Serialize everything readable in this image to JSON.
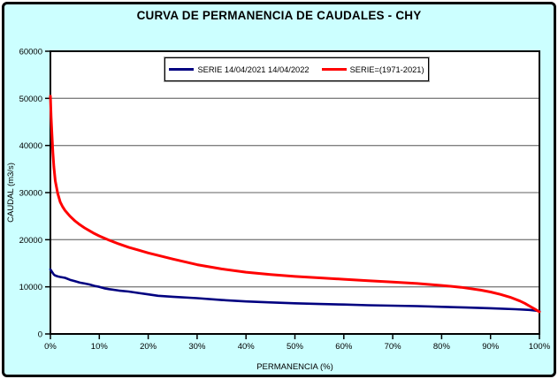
{
  "colors": {
    "background": "#CCFFFF",
    "plot_background": "#FFFFFF",
    "gridline": "#808080",
    "axis": "#000000",
    "series_blue": "#000080",
    "series_red": "#FF0000"
  },
  "chart_data": {
    "type": "line",
    "title": "CURVA DE PERMANENCIA DE CAUDALES - CHY",
    "xlabel": "PERMANENCIA (%)",
    "ylabel": "CAUDAL (m3/s)",
    "xlim": [
      0,
      100
    ],
    "ylim": [
      0,
      60000
    ],
    "x_tick_labels": [
      "0%",
      "10%",
      "20%",
      "30%",
      "40%",
      "50%",
      "60%",
      "70%",
      "80%",
      "90%",
      "100%"
    ],
    "y_tick_labels": [
      "0",
      "10000",
      "20000",
      "30000",
      "40000",
      "50000",
      "60000"
    ],
    "grid": "horizontal-only",
    "legend_position": "top-center-inside",
    "series": [
      {
        "id": "serie-2021-2022",
        "name": "SERIE 14/04/2021 14/04/2022",
        "color": "#000080",
        "stroke_width": 2.6,
        "x": [
          0,
          0.3,
          0.7,
          1,
          1.5,
          2,
          3,
          4,
          5,
          6,
          7,
          8,
          9,
          10,
          11,
          12,
          14,
          16,
          18,
          20,
          22,
          25,
          30,
          35,
          40,
          45,
          50,
          55,
          60,
          65,
          70,
          75,
          80,
          85,
          90,
          95,
          98,
          100
        ],
        "y": [
          13700,
          13200,
          12600,
          12400,
          12200,
          12100,
          11900,
          11500,
          11200,
          10900,
          10700,
          10500,
          10200,
          10000,
          9700,
          9500,
          9200,
          9000,
          8700,
          8400,
          8100,
          7900,
          7600,
          7200,
          6900,
          6700,
          6500,
          6350,
          6250,
          6100,
          6000,
          5900,
          5750,
          5600,
          5450,
          5250,
          5100,
          4850
        ]
      },
      {
        "id": "serie-1971-2021",
        "name": "SERIE=(1971-2021)",
        "color": "#FF0000",
        "stroke_width": 3,
        "x": [
          0,
          0.15,
          0.3,
          0.5,
          0.7,
          1,
          1.5,
          2,
          2.5,
          3,
          4,
          5,
          6,
          7,
          8,
          9,
          10,
          12,
          14,
          16,
          18,
          20,
          25,
          30,
          35,
          40,
          45,
          50,
          55,
          60,
          65,
          70,
          75,
          80,
          82,
          84,
          86,
          88,
          90,
          92,
          94,
          96,
          97,
          98,
          99,
          99.5,
          100
        ],
        "y": [
          50500,
          46000,
          42500,
          38500,
          35500,
          32500,
          29800,
          28000,
          27000,
          26200,
          25000,
          24000,
          23200,
          22500,
          21900,
          21300,
          20800,
          19900,
          19100,
          18400,
          17800,
          17200,
          15900,
          14700,
          13800,
          13100,
          12600,
          12200,
          11900,
          11600,
          11300,
          11000,
          10700,
          10300,
          10100,
          9900,
          9600,
          9300,
          8900,
          8400,
          7800,
          7000,
          6500,
          5900,
          5300,
          5000,
          4700
        ]
      }
    ]
  }
}
